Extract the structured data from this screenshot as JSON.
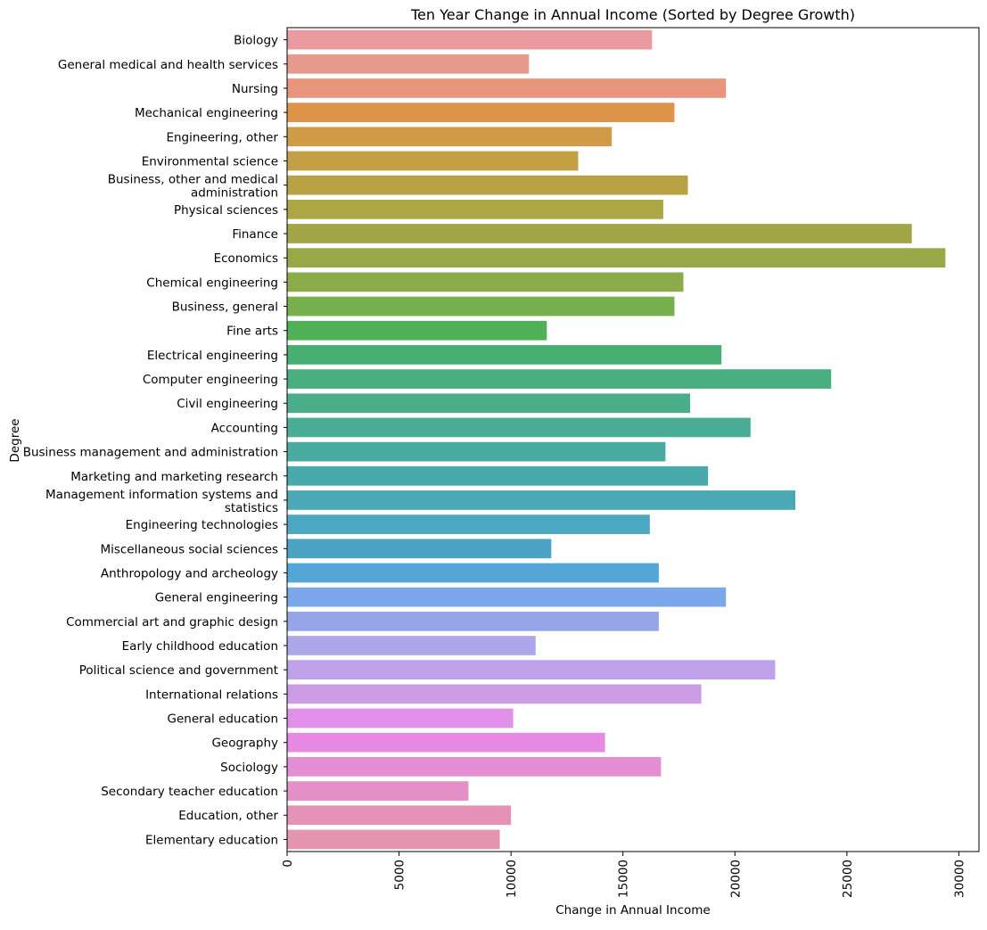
{
  "chart_data": {
    "type": "bar",
    "orientation": "horizontal",
    "title": "Ten Year Change in Annual Income (Sorted by Degree Growth)",
    "xlabel": "Change in Annual Income",
    "ylabel": "Degree",
    "xlim": [
      0,
      30900
    ],
    "xticks": [
      0,
      5000,
      10000,
      15000,
      20000,
      25000,
      30000
    ],
    "xtick_labels": [
      "0",
      "5000",
      "10000",
      "15000",
      "20000",
      "25000",
      "30000"
    ],
    "grid": false,
    "legend": "none",
    "categories": [
      [
        "Biology"
      ],
      [
        "General medical and health services"
      ],
      [
        "Nursing"
      ],
      [
        "Mechanical engineering"
      ],
      [
        "Engineering, other"
      ],
      [
        "Environmental science"
      ],
      [
        "Business, other and medical",
        "administration"
      ],
      [
        "Physical sciences"
      ],
      [
        "Finance"
      ],
      [
        "Economics"
      ],
      [
        "Chemical engineering"
      ],
      [
        "Business, general"
      ],
      [
        "Fine arts"
      ],
      [
        "Electrical engineering"
      ],
      [
        "Computer engineering"
      ],
      [
        "Civil engineering"
      ],
      [
        "Accounting"
      ],
      [
        "Business management and administration"
      ],
      [
        "Marketing and marketing research"
      ],
      [
        "Management information systems and",
        "statistics"
      ],
      [
        "Engineering technologies"
      ],
      [
        "Miscellaneous social sciences"
      ],
      [
        "Anthropology and archeology"
      ],
      [
        "General engineering"
      ],
      [
        "Commercial art and graphic design"
      ],
      [
        "Early childhood education"
      ],
      [
        "Political science and government"
      ],
      [
        "International relations"
      ],
      [
        "General education"
      ],
      [
        "Geography"
      ],
      [
        "Sociology"
      ],
      [
        "Secondary teacher education"
      ],
      [
        "Education, other"
      ],
      [
        "Elementary education"
      ]
    ],
    "values": [
      16300,
      10800,
      19600,
      17300,
      14500,
      13000,
      17900,
      16800,
      27900,
      29400,
      17700,
      17300,
      11600,
      19400,
      24300,
      18000,
      20700,
      16900,
      18800,
      22700,
      16200,
      11800,
      16600,
      19600,
      16600,
      11100,
      21800,
      18500,
      10100,
      14200,
      16700,
      8100,
      10000,
      9500
    ],
    "colors": [
      "#eb9aa0",
      "#e89a8f",
      "#e8967b",
      "#df9549",
      "#cf9b46",
      "#c49f43",
      "#b9a243",
      "#ada645",
      "#a2a545",
      "#99a747",
      "#8cac49",
      "#77b04d",
      "#4fb058",
      "#48af73",
      "#4aae80",
      "#4aae8b",
      "#4aae96",
      "#4aaba3",
      "#4aa9aa",
      "#4aa9b4",
      "#4ca7c1",
      "#4ba4c3",
      "#54a6d7",
      "#7aa8ea",
      "#94a6e8",
      "#ada7ea",
      "#bea1e9",
      "#cc9be5",
      "#e090e8",
      "#e78ae3",
      "#e48ed3",
      "#e58fc8",
      "#e592b8",
      "#e695ae"
    ]
  }
}
